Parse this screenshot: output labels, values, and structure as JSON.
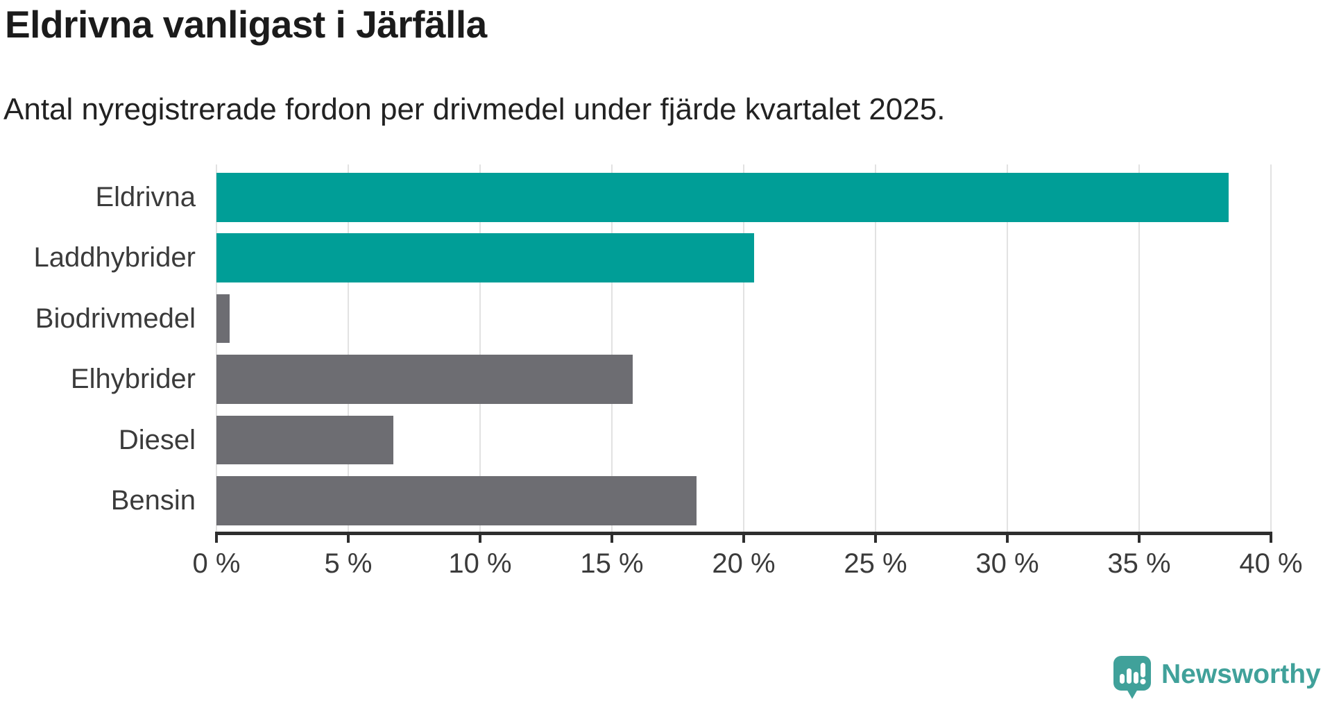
{
  "header": {
    "title": "Eldrivna vanligast i Järfälla",
    "subtitle": "Antal nyregistrerade fordon per drivmedel under fjärde kvartalet 2025."
  },
  "chart_data": {
    "type": "bar",
    "orientation": "horizontal",
    "title": "Eldrivna vanligast i Järfälla",
    "subtitle": "Antal nyregistrerade fordon per drivmedel under fjärde kvartalet 2025.",
    "categories": [
      "Eldrivna",
      "Laddhybrider",
      "Biodrivmedel",
      "Elhybrider",
      "Diesel",
      "Bensin"
    ],
    "values": [
      38.4,
      20.4,
      0.5,
      15.8,
      6.7,
      18.2
    ],
    "unit": "%",
    "bar_colors": [
      "#009e97",
      "#009e97",
      "#6d6d72",
      "#6d6d72",
      "#6d6d72",
      "#6d6d72"
    ],
    "highlight_color": "#009e97",
    "default_color": "#6d6d72",
    "xlabel": "",
    "ylabel": "",
    "xlim": [
      0,
      40
    ],
    "x_tick_step": 5,
    "x_tick_labels": [
      "0 %",
      "5 %",
      "10 %",
      "15 %",
      "20 %",
      "25 %",
      "30 %",
      "35 %",
      "40 %"
    ],
    "grid": "vertical-gridlines-on",
    "legend": "none"
  },
  "branding": {
    "logo_text": "Newsworthy",
    "logo_color": "#40a19a"
  },
  "colors": {
    "background": "#ffffff",
    "gridline": "#e2e2e2",
    "axis": "#2e2e2e",
    "label_text": "#3b3b3b",
    "title_text": "#1b1b1b"
  }
}
